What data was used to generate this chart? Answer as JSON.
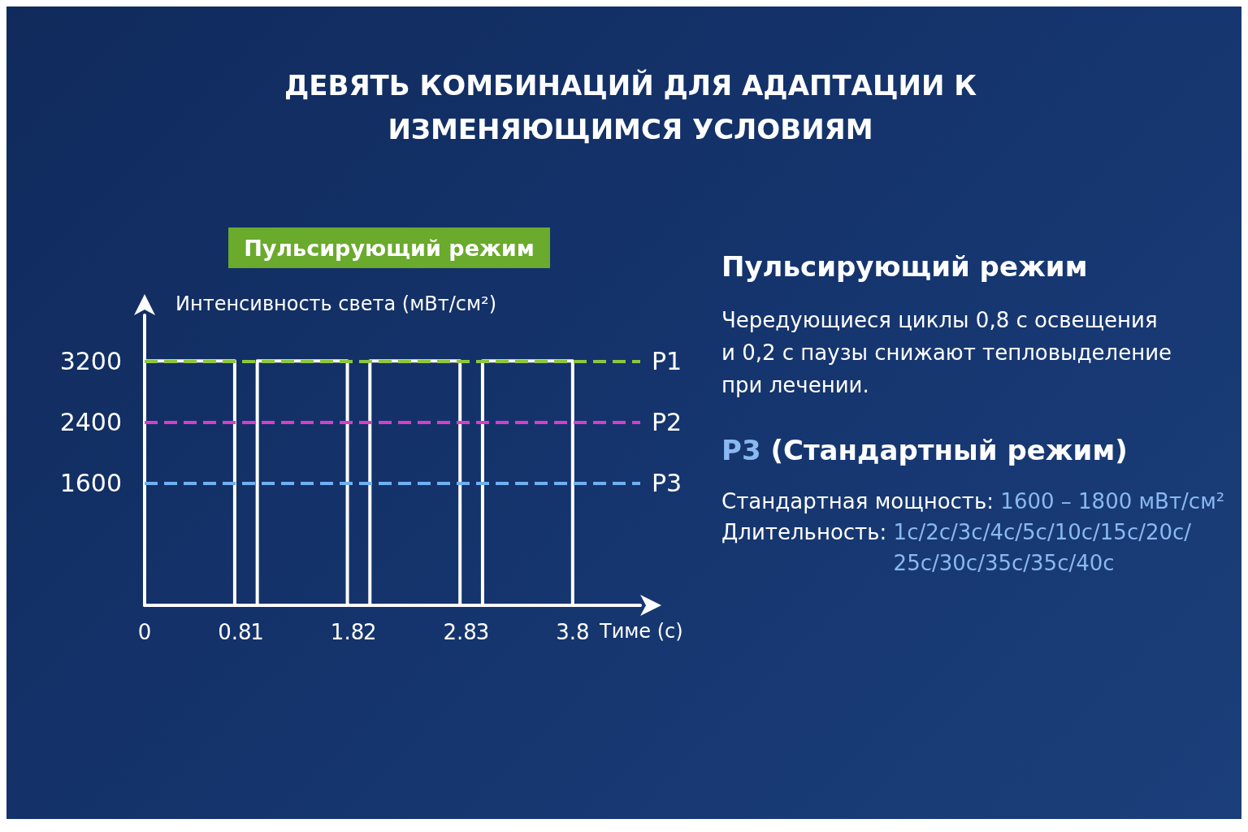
{
  "chart_data": {
    "type": "step",
    "title": "ДЕВЯТЬ КОМБИНАЦИЙ ДЛЯ АДАПТАЦИИ К ИЗМЕНЯЮЩИМСЯ УСЛОВИЯМ",
    "subtitle": "Пульсирующий режим",
    "ylabel": "Интенсивность света (мВт/см²)",
    "xlabel": "Тиме (с)",
    "x": [
      0,
      0.8,
      1,
      1.8,
      2,
      2.8,
      3,
      3.8
    ],
    "values": [
      3200,
      0,
      3200,
      0,
      3200,
      0,
      3200,
      0
    ],
    "color": "#ffffff",
    "marker": "none",
    "line_style": "solid",
    "xlim": [
      0,
      4.4
    ],
    "xticks": [
      0,
      0.8,
      1,
      1.8,
      2,
      2.8,
      3,
      3.8
    ],
    "ylim": [
      0,
      3800
    ],
    "yticks": [
      1600,
      2400,
      3200
    ],
    "ref_lines": [
      {
        "axis": "y",
        "value": 3200,
        "label": "P1",
        "color": "#8dc63f",
        "line_style": "dashed"
      },
      {
        "axis": "y",
        "value": 2400,
        "label": "P2",
        "color": "#d63fc8",
        "line_style": "dashed"
      },
      {
        "axis": "y",
        "value": 1600,
        "label": "P3",
        "color": "#6fb0f0",
        "line_style": "dashed"
      }
    ],
    "annotations": [
      "Пульсирующий режим",
      "Чередующиеся циклы 0,8 с освещения и 0,2 с паузы снижают тепловыделение при лечении.",
      "P3 (Стандартный режим)",
      "Стандартная мощность: 1600 – 1800 мВт/см²",
      "Длительность: 1с/2с/3с/4с/5с/10с/15с/20с/25с/30с/35с/35с/40с"
    ]
  }
}
